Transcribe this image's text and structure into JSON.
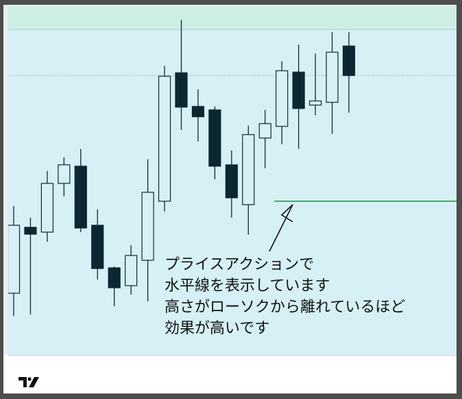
{
  "chart_data": {
    "type": "candlestick",
    "title": "",
    "xlabel": "",
    "ylabel": "",
    "ylim": [
      100,
      150.9
    ],
    "grid": false,
    "colors": {
      "background": "#d6f0f6",
      "top_band": "#cdeee3",
      "bearish_body": "#0d2730",
      "bullish_body": "#d6f0f6",
      "outline": "#0d2730",
      "horizontal_line": "#4caa6e"
    },
    "candles": [
      {
        "o": 109.0,
        "h": 121.7,
        "l": 105.7,
        "c": 118.9
      },
      {
        "o": 118.6,
        "h": 120.0,
        "l": 105.9,
        "c": 117.6
      },
      {
        "o": 117.9,
        "h": 126.8,
        "l": 116.5,
        "c": 125.0
      },
      {
        "o": 125.0,
        "h": 128.8,
        "l": 123.1,
        "c": 127.7
      },
      {
        "o": 127.5,
        "h": 130.0,
        "l": 117.9,
        "c": 118.5
      },
      {
        "o": 118.9,
        "h": 121.2,
        "l": 111.0,
        "c": 112.6
      },
      {
        "o": 112.7,
        "h": 112.9,
        "l": 107.1,
        "c": 109.8
      },
      {
        "o": 110.1,
        "h": 116.0,
        "l": 108.8,
        "c": 114.5
      },
      {
        "o": 113.8,
        "h": 128.5,
        "l": 107.8,
        "c": 123.7
      },
      {
        "o": 122.4,
        "h": 142.1,
        "l": 120.9,
        "c": 140.6
      },
      {
        "o": 141.1,
        "h": 148.8,
        "l": 132.8,
        "c": 136.1
      },
      {
        "o": 136.2,
        "h": 138.7,
        "l": 131.1,
        "c": 134.7
      },
      {
        "o": 135.7,
        "h": 136.2,
        "l": 125.6,
        "c": 127.5
      },
      {
        "o": 127.7,
        "h": 129.8,
        "l": 120.0,
        "c": 122.9
      },
      {
        "o": 121.9,
        "h": 133.4,
        "l": 117.5,
        "c": 132.1
      },
      {
        "o": 131.6,
        "h": 135.7,
        "l": 127.2,
        "c": 133.7
      },
      {
        "o": 133.3,
        "h": 142.8,
        "l": 130.7,
        "c": 141.4
      },
      {
        "o": 141.2,
        "h": 145.2,
        "l": 130.0,
        "c": 135.9
      },
      {
        "o": 136.4,
        "h": 143.9,
        "l": 134.9,
        "c": 137.0
      },
      {
        "o": 136.8,
        "h": 147.0,
        "l": 132.2,
        "c": 144.1
      },
      {
        "o": 145.0,
        "h": 147.0,
        "l": 135.3,
        "c": 140.7
      }
    ],
    "top_band": {
      "from": 147.4,
      "to": 150.9
    },
    "dotted_line": {
      "price": 140.7
    },
    "horizontal_line": {
      "price": 122.4,
      "start_index": 16
    }
  },
  "annotation": {
    "lines": [
      "プライスアクションで",
      "水平線を表示しています",
      "高さがローソクから離れているほど",
      "効果が高いです"
    ]
  },
  "logo": {
    "text": "TV"
  }
}
